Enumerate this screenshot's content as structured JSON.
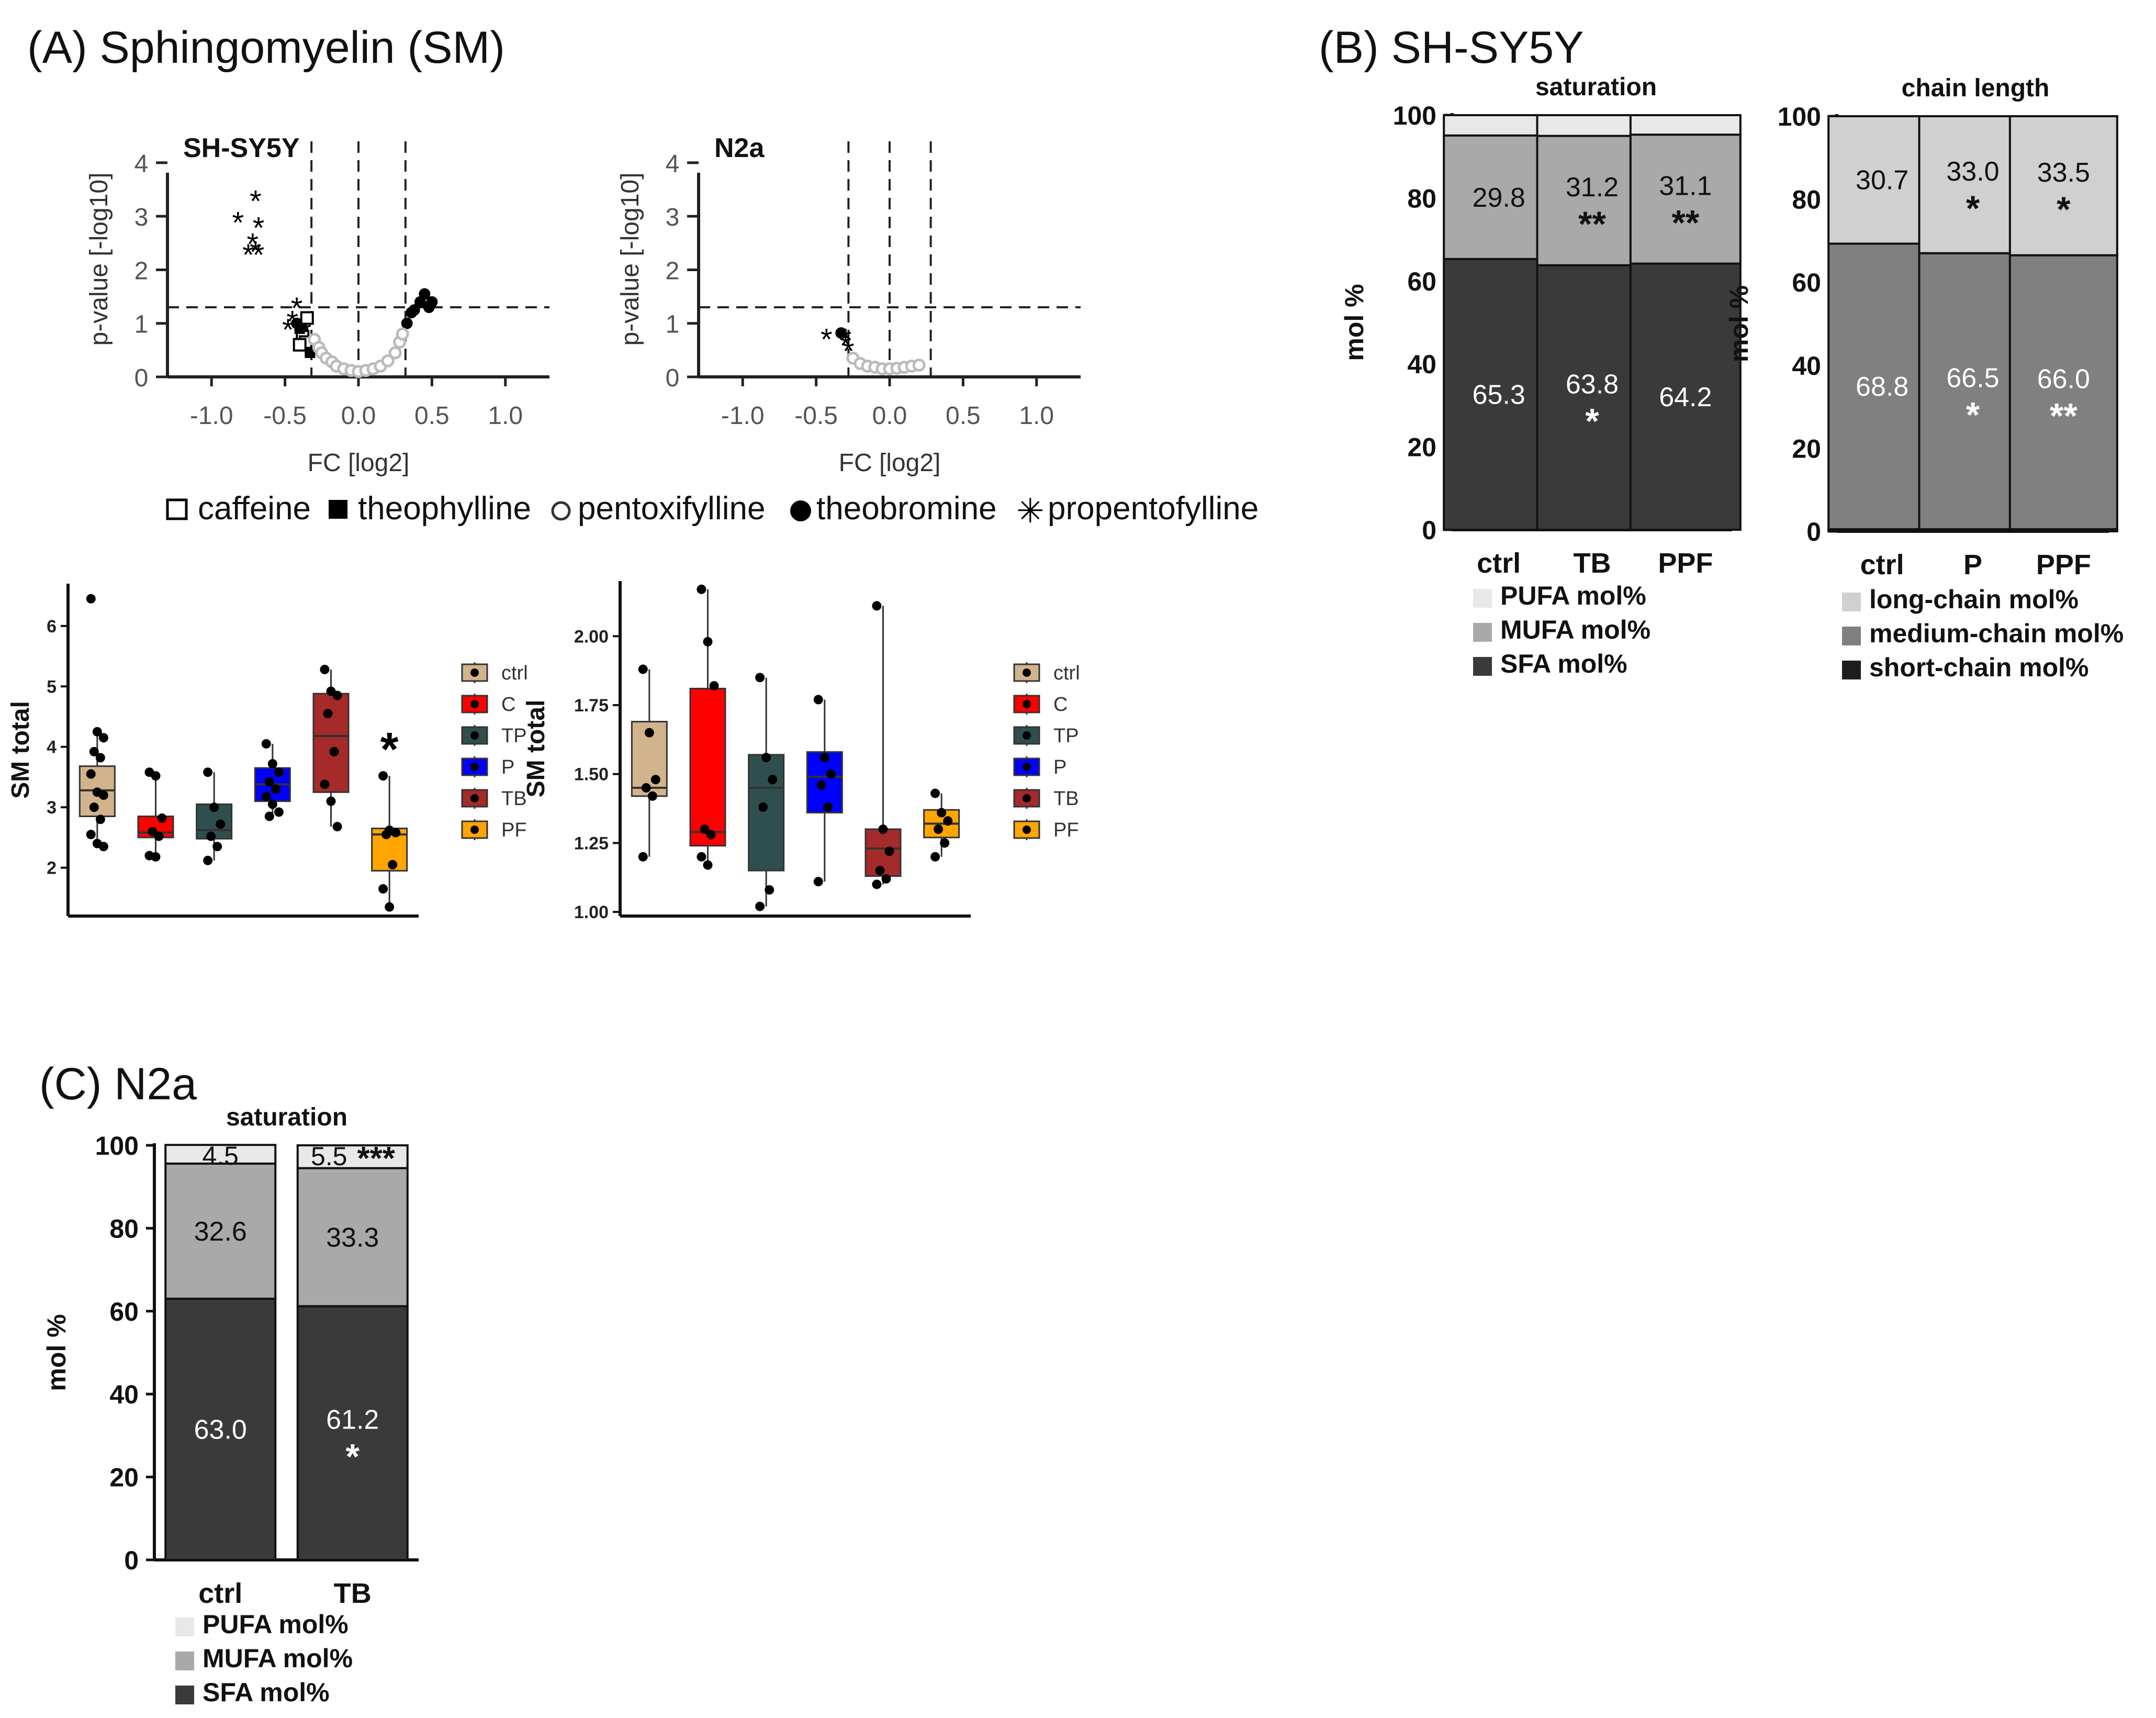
{
  "panel_labels": {
    "A": "(A) Sphingomyelin (SM)",
    "B": "(B) SH-SY5Y",
    "C": "(C) N2a"
  },
  "volcano_legend": {
    "items": [
      {
        "symbol": "□",
        "label": "caffeine"
      },
      {
        "symbol": "■",
        "label": "theophylline"
      },
      {
        "symbol": "○",
        "label": "pentoxifylline"
      },
      {
        "symbol": "●",
        "label": "theobromine"
      },
      {
        "symbol": "✳",
        "label": "propentofylline"
      }
    ]
  },
  "box_legend": {
    "items": [
      {
        "label": "ctrl",
        "color": "#d2b48c"
      },
      {
        "label": "C",
        "color": "#ff0000"
      },
      {
        "label": "TP",
        "color": "#2f4f4f"
      },
      {
        "label": "P",
        "color": "#0000ff"
      },
      {
        "label": "TB",
        "color": "#a52a2a"
      },
      {
        "label": "PF",
        "color": "#ffa500"
      }
    ]
  },
  "colors": {
    "pufa": "#e8e8e8",
    "mufa": "#a9a9a9",
    "sfa": "#3a3a3a",
    "long_chain": "#d0d0d0",
    "medium_chain": "#808080",
    "short_chain": "#1e1e1e"
  },
  "chart_data": [
    {
      "id": "volcano-shsy5y",
      "type": "scatter",
      "title": "SH-SY5Y",
      "xlabel": "FC [log2]",
      "ylabel": "p-value [-log10]",
      "xlim": [
        -1.3,
        1.3
      ],
      "ylim": [
        0,
        4.4
      ],
      "xticks": [
        "-1.0",
        "-0.5",
        "0.0",
        "0.5",
        "1.0"
      ],
      "xtick_values": [
        -1.0,
        -0.5,
        0.0,
        0.5,
        1.0
      ],
      "yticks": [
        "0",
        "1",
        "2",
        "3",
        "4"
      ],
      "ytick_values": [
        0,
        1,
        2,
        3,
        4
      ],
      "hline": 1.3,
      "vlines": [
        -0.32,
        0.0,
        0.32
      ],
      "series": [
        {
          "name": "propentofylline",
          "marker": "star",
          "points": [
            [
              -0.7,
              3.3
            ],
            [
              -0.82,
              2.9
            ],
            [
              -0.68,
              2.8
            ],
            [
              -0.72,
              2.5
            ],
            [
              -0.7,
              2.35
            ],
            [
              -0.75,
              2.3
            ],
            [
              -0.68,
              2.3
            ],
            [
              -0.42,
              1.3
            ],
            [
              -0.45,
              1.05
            ],
            [
              -0.48,
              0.9
            ],
            [
              -0.4,
              0.9
            ],
            [
              -0.36,
              0.85
            ]
          ]
        },
        {
          "name": "theobromine",
          "marker": "filled-circle",
          "points": [
            [
              0.45,
              1.55
            ],
            [
              0.42,
              1.4
            ],
            [
              0.5,
              1.4
            ],
            [
              0.48,
              1.3
            ],
            [
              0.38,
              1.25
            ],
            [
              0.36,
              1.2
            ],
            [
              0.33,
              1.0
            ],
            [
              -0.42,
              1.0
            ],
            [
              -0.4,
              0.95
            ],
            [
              -0.38,
              0.9
            ]
          ]
        },
        {
          "name": "caffeine",
          "marker": "open-square",
          "points": [
            [
              -0.35,
              1.1
            ],
            [
              -0.38,
              0.75
            ],
            [
              -0.36,
              0.65
            ],
            [
              -0.4,
              0.6
            ]
          ]
        },
        {
          "name": "theophylline",
          "marker": "filled-square",
          "points": [
            [
              -0.33,
              0.45
            ],
            [
              -0.4,
              0.9
            ]
          ]
        },
        {
          "name": "pentoxifylline",
          "marker": "open-circle",
          "points": [
            [
              -0.3,
              0.7
            ],
            [
              -0.27,
              0.55
            ],
            [
              -0.25,
              0.45
            ],
            [
              -0.22,
              0.35
            ],
            [
              -0.18,
              0.28
            ],
            [
              -0.15,
              0.2
            ],
            [
              -0.1,
              0.15
            ],
            [
              -0.05,
              0.12
            ],
            [
              0.0,
              0.1
            ],
            [
              0.05,
              0.12
            ],
            [
              0.1,
              0.15
            ],
            [
              0.15,
              0.2
            ],
            [
              0.2,
              0.3
            ],
            [
              0.25,
              0.45
            ],
            [
              0.28,
              0.65
            ],
            [
              0.3,
              0.8
            ]
          ]
        }
      ]
    },
    {
      "id": "volcano-n2a",
      "type": "scatter",
      "title": "N2a",
      "xlabel": "FC [log2]",
      "ylabel": "p-value [-log10]",
      "xlim": [
        -1.3,
        1.3
      ],
      "ylim": [
        0,
        4.4
      ],
      "xticks": [
        "-1.0",
        "-0.5",
        "0.0",
        "0.5",
        "1.0"
      ],
      "xtick_values": [
        -1.0,
        -0.5,
        0.0,
        0.5,
        1.0
      ],
      "yticks": [
        "0",
        "1",
        "2",
        "3",
        "4"
      ],
      "ytick_values": [
        0,
        1,
        2,
        3,
        4
      ],
      "hline": 1.3,
      "vlines": [
        -0.28,
        0.0,
        0.28
      ],
      "series": [
        {
          "name": "theobromine",
          "marker": "filled-circle",
          "points": [
            [
              -0.33,
              0.82
            ]
          ]
        },
        {
          "name": "propentofylline",
          "marker": "star",
          "points": [
            [
              -0.43,
              0.72
            ],
            [
              -0.3,
              0.72
            ],
            [
              -0.3,
              0.6
            ],
            [
              -0.28,
              0.5
            ]
          ]
        },
        {
          "name": "pentoxifylline",
          "marker": "open-circle",
          "points": [
            [
              -0.25,
              0.35
            ],
            [
              -0.2,
              0.25
            ],
            [
              -0.15,
              0.2
            ],
            [
              -0.1,
              0.18
            ],
            [
              -0.05,
              0.15
            ],
            [
              0.0,
              0.15
            ],
            [
              0.05,
              0.16
            ],
            [
              0.1,
              0.18
            ],
            [
              0.15,
              0.2
            ],
            [
              0.2,
              0.22
            ]
          ]
        }
      ]
    },
    {
      "id": "box-shsy5y",
      "type": "box",
      "ylabel": "SM total",
      "ylim": [
        1.2,
        6.7
      ],
      "yticks": [
        "2",
        "3",
        "4",
        "5",
        "6"
      ],
      "ytick_values": [
        2,
        3,
        4,
        5,
        6
      ],
      "annotations": [
        {
          "group": "PF",
          "text": "*"
        }
      ],
      "groups": [
        {
          "label": "ctrl",
          "q1": 2.85,
          "median": 3.28,
          "q3": 3.68,
          "wmin": 2.35,
          "wmax": 4.25,
          "points": [
            6.45,
            4.25,
            4.15,
            3.92,
            3.82,
            3.55,
            3.25,
            3.2,
            3.0,
            2.8,
            2.55,
            2.4,
            2.35
          ]
        },
        {
          "label": "C",
          "q1": 2.5,
          "median": 2.58,
          "q3": 2.85,
          "wmin": 2.18,
          "wmax": 3.58,
          "points": [
            3.58,
            3.52,
            2.82,
            2.6,
            2.52,
            2.2,
            2.18
          ]
        },
        {
          "label": "TP",
          "q1": 2.48,
          "median": 2.62,
          "q3": 3.05,
          "wmin": 2.12,
          "wmax": 3.58,
          "points": [
            3.58,
            3.0,
            2.72,
            2.52,
            2.35,
            2.12
          ]
        },
        {
          "label": "P",
          "q1": 3.1,
          "median": 3.38,
          "q3": 3.65,
          "wmin": 2.82,
          "wmax": 4.05,
          "points": [
            4.05,
            3.72,
            3.58,
            3.42,
            3.3,
            3.18,
            3.05,
            2.92,
            2.85
          ]
        },
        {
          "label": "TB",
          "q1": 3.25,
          "median": 4.18,
          "q3": 4.88,
          "wmin": 2.68,
          "wmax": 5.28,
          "points": [
            5.28,
            4.92,
            4.85,
            4.55,
            3.92,
            3.38,
            3.1,
            2.68
          ]
        },
        {
          "label": "PF",
          "q1": 1.95,
          "median": 2.55,
          "q3": 2.65,
          "wmin": 1.35,
          "wmax": 3.52,
          "points": [
            3.52,
            2.62,
            2.58,
            2.55,
            2.05,
            1.65,
            1.35
          ]
        }
      ]
    },
    {
      "id": "box-n2a",
      "type": "box",
      "ylabel": "SM total",
      "ylim": [
        0.985,
        2.2
      ],
      "yticks": [
        "1.00",
        "1.25",
        "1.50",
        "1.75",
        "2.00"
      ],
      "ytick_values": [
        1.0,
        1.25,
        1.5,
        1.75,
        2.0
      ],
      "groups": [
        {
          "label": "ctrl",
          "q1": 1.42,
          "median": 1.45,
          "q3": 1.69,
          "wmin": 1.2,
          "wmax": 1.88,
          "points": [
            1.88,
            1.65,
            1.48,
            1.45,
            1.42,
            1.2
          ]
        },
        {
          "label": "C",
          "q1": 1.24,
          "median": 1.29,
          "q3": 1.81,
          "wmin": 1.17,
          "wmax": 2.17,
          "points": [
            2.17,
            1.98,
            1.82,
            1.3,
            1.28,
            1.2,
            1.17
          ]
        },
        {
          "label": "TP",
          "q1": 1.15,
          "median": 1.45,
          "q3": 1.57,
          "wmin": 1.02,
          "wmax": 1.85,
          "points": [
            1.85,
            1.56,
            1.48,
            1.38,
            1.08,
            1.02
          ]
        },
        {
          "label": "P",
          "q1": 1.36,
          "median": 1.49,
          "q3": 1.58,
          "wmin": 1.11,
          "wmax": 1.77,
          "points": [
            1.77,
            1.56,
            1.5,
            1.46,
            1.38,
            1.11
          ]
        },
        {
          "label": "TB",
          "q1": 1.13,
          "median": 1.23,
          "q3": 1.3,
          "wmin": 1.1,
          "wmax": 2.11,
          "points": [
            2.11,
            1.3,
            1.22,
            1.15,
            1.12,
            1.1
          ]
        },
        {
          "label": "PF",
          "q1": 1.27,
          "median": 1.32,
          "q3": 1.37,
          "wmin": 1.2,
          "wmax": 1.43,
          "points": [
            1.43,
            1.36,
            1.33,
            1.3,
            1.25,
            1.2
          ]
        }
      ]
    },
    {
      "id": "stack-shsy5y-saturation",
      "type": "stacked-bar",
      "title": "saturation",
      "ylabel": "mol %",
      "ylim": [
        0,
        100
      ],
      "yticks": [
        "0",
        "20",
        "40",
        "60",
        "80",
        "100"
      ],
      "ytick_values": [
        0,
        20,
        40,
        60,
        80,
        100
      ],
      "categories": [
        "ctrl",
        "TB",
        "PPF"
      ],
      "segments": [
        {
          "name": "SFA mol%",
          "color_key": "sfa",
          "values": [
            65.3,
            63.8,
            64.2
          ],
          "labels": [
            "65.3",
            "63.8",
            "64.2"
          ],
          "stars": [
            "",
            "*",
            ""
          ],
          "text_color": "#ffffff"
        },
        {
          "name": "MUFA mol%",
          "color_key": "mufa",
          "values": [
            29.8,
            31.2,
            31.1
          ],
          "labels": [
            "29.8",
            "31.2",
            "31.1"
          ],
          "stars": [
            "",
            "**",
            "**"
          ],
          "text_color": "#111111"
        },
        {
          "name": "PUFA mol%",
          "color_key": "pufa",
          "values": [
            4.9,
            5.0,
            4.7
          ],
          "labels": [
            "",
            "",
            ""
          ],
          "stars": [
            "",
            "",
            ""
          ],
          "text_color": "#111111"
        }
      ],
      "legend": [
        "PUFA mol%",
        "MUFA mol%",
        "SFA mol%"
      ],
      "legend_keys": [
        "pufa",
        "mufa",
        "sfa"
      ]
    },
    {
      "id": "stack-shsy5y-chain",
      "type": "stacked-bar",
      "title": "chain length",
      "ylabel": "mol %",
      "ylim": [
        0,
        100
      ],
      "yticks": [
        "0",
        "20",
        "40",
        "60",
        "80",
        "100"
      ],
      "ytick_values": [
        0,
        20,
        40,
        60,
        80,
        100
      ],
      "categories": [
        "ctrl",
        "P",
        "PPF"
      ],
      "segments": [
        {
          "name": "short-chain mol%",
          "color_key": "short_chain",
          "values": [
            0.5,
            0.5,
            0.5
          ],
          "labels": [
            "",
            "",
            ""
          ],
          "stars": [
            "",
            "",
            ""
          ],
          "text_color": "#ffffff"
        },
        {
          "name": "medium-chain mol%",
          "color_key": "medium_chain",
          "values": [
            68.8,
            66.5,
            66.0
          ],
          "labels": [
            "68.8",
            "66.5",
            "66.0"
          ],
          "stars": [
            "",
            "*",
            "**"
          ],
          "text_color": "#ffffff"
        },
        {
          "name": "long-chain mol%",
          "color_key": "long_chain",
          "values": [
            30.7,
            33.0,
            33.5
          ],
          "labels": [
            "30.7",
            "33.0",
            "33.5"
          ],
          "stars": [
            "",
            "*",
            "*"
          ],
          "text_color": "#111111"
        }
      ],
      "legend": [
        "long-chain mol%",
        "medium-chain mol%",
        "short-chain mol%"
      ],
      "legend_keys": [
        "long_chain",
        "medium_chain",
        "short_chain"
      ]
    },
    {
      "id": "stack-n2a-saturation",
      "type": "stacked-bar",
      "title": "saturation",
      "ylabel": "mol %",
      "ylim": [
        0,
        100
      ],
      "yticks": [
        "0",
        "20",
        "40",
        "60",
        "80",
        "100"
      ],
      "ytick_values": [
        0,
        20,
        40,
        60,
        80,
        100
      ],
      "categories": [
        "ctrl",
        "TB"
      ],
      "segments": [
        {
          "name": "SFA mol%",
          "color_key": "sfa",
          "values": [
            63.0,
            61.2
          ],
          "labels": [
            "63.0",
            "61.2"
          ],
          "stars": [
            "",
            "*"
          ],
          "text_color": "#ffffff"
        },
        {
          "name": "MUFA mol%",
          "color_key": "mufa",
          "values": [
            32.6,
            33.3
          ],
          "labels": [
            "32.6",
            "33.3"
          ],
          "stars": [
            "",
            ""
          ],
          "text_color": "#111111"
        },
        {
          "name": "PUFA mol%",
          "color_key": "pufa",
          "values": [
            4.5,
            5.5
          ],
          "labels": [
            "4.5",
            "5.5"
          ],
          "stars": [
            "",
            "***"
          ],
          "text_color": "#111111"
        }
      ],
      "legend": [
        "PUFA mol%",
        "MUFA mol%",
        "SFA mol%"
      ],
      "legend_keys": [
        "pufa",
        "mufa",
        "sfa"
      ]
    }
  ]
}
